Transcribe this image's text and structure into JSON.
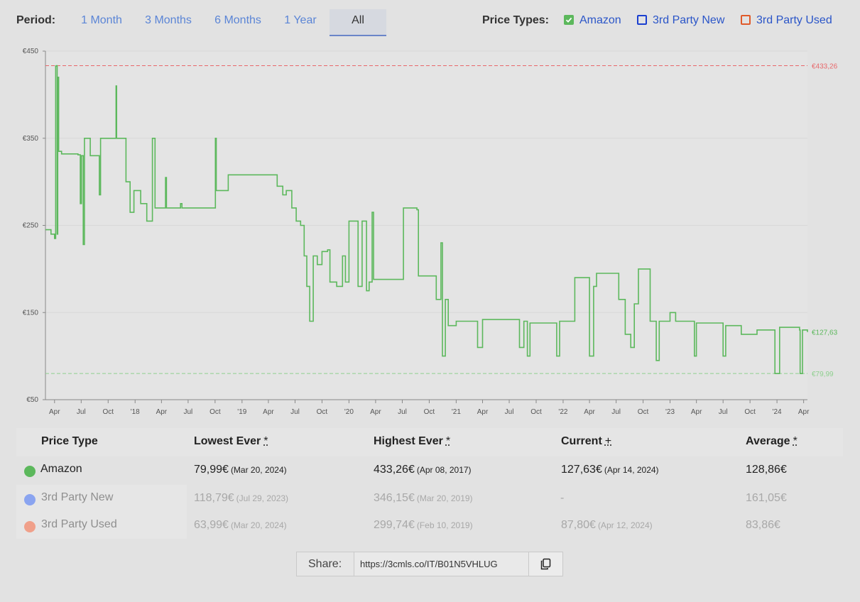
{
  "period": {
    "label": "Period:",
    "options": [
      "1 Month",
      "3 Months",
      "6 Months",
      "1 Year",
      "All"
    ],
    "selected": "All"
  },
  "price_types": {
    "label": "Price Types:",
    "items": [
      {
        "label": "Amazon",
        "checked": true,
        "color": "#5cb85c"
      },
      {
        "label": "3rd Party New",
        "checked": false,
        "color": "#1a3fd0"
      },
      {
        "label": "3rd Party Used",
        "checked": false,
        "color": "#e05a2a"
      }
    ]
  },
  "chart_data": {
    "type": "line",
    "title": "",
    "xlabel": "",
    "ylabel": "",
    "ylim": [
      50,
      450
    ],
    "y_ticks": [
      "€450",
      "€350",
      "€250",
      "€150",
      "€50"
    ],
    "x_ticks": [
      "Apr",
      "Jul",
      "Oct",
      "'18",
      "Apr",
      "Jul",
      "Oct",
      "'19",
      "Apr",
      "Jul",
      "Oct",
      "'20",
      "Apr",
      "Jul",
      "Oct",
      "'21",
      "Apr",
      "Jul",
      "Oct",
      "'22",
      "Apr",
      "Jul",
      "Oct",
      "'23",
      "Apr",
      "Jul",
      "Oct",
      "'24",
      "Apr"
    ],
    "x_range": [
      "2017-03-01",
      "2024-04-14"
    ],
    "reference_lines": [
      {
        "label": "€433,26",
        "value": 433.26,
        "color": "#e8686b"
      },
      {
        "label": "€127,63",
        "value": 127.63,
        "color": "#5cb85c"
      },
      {
        "label": "€79,99",
        "value": 79.99,
        "color": "#8fd08f"
      }
    ],
    "series": [
      {
        "name": "Amazon",
        "color": "#5cb85c",
        "points": [
          [
            "2017-03-01",
            245
          ],
          [
            "2017-03-20",
            240
          ],
          [
            "2017-04-01",
            235
          ],
          [
            "2017-04-05",
            433
          ],
          [
            "2017-04-08",
            433.26
          ],
          [
            "2017-04-10",
            240
          ],
          [
            "2017-04-12",
            420
          ],
          [
            "2017-04-15",
            335
          ],
          [
            "2017-04-25",
            332
          ],
          [
            "2017-05-20",
            332
          ],
          [
            "2017-06-20",
            331
          ],
          [
            "2017-06-28",
            275
          ],
          [
            "2017-07-02",
            330
          ],
          [
            "2017-07-08",
            228
          ],
          [
            "2017-07-12",
            350
          ],
          [
            "2017-07-25",
            350
          ],
          [
            "2017-08-01",
            330
          ],
          [
            "2017-08-20",
            330
          ],
          [
            "2017-09-01",
            285
          ],
          [
            "2017-09-05",
            350
          ],
          [
            "2017-10-25",
            350
          ],
          [
            "2017-10-28",
            410
          ],
          [
            "2017-10-30",
            350
          ],
          [
            "2017-11-25",
            350
          ],
          [
            "2017-12-01",
            300
          ],
          [
            "2017-12-15",
            265
          ],
          [
            "2017-12-28",
            290
          ],
          [
            "2018-01-20",
            275
          ],
          [
            "2018-02-10",
            255
          ],
          [
            "2018-03-01",
            350
          ],
          [
            "2018-03-10",
            270
          ],
          [
            "2018-04-15",
            305
          ],
          [
            "2018-04-18",
            270
          ],
          [
            "2018-05-30",
            270
          ],
          [
            "2018-06-05",
            275
          ],
          [
            "2018-06-10",
            270
          ],
          [
            "2018-09-30",
            270
          ],
          [
            "2018-10-02",
            350
          ],
          [
            "2018-10-05",
            290
          ],
          [
            "2018-11-10",
            290
          ],
          [
            "2018-11-15",
            308
          ],
          [
            "2019-04-20",
            308
          ],
          [
            "2019-05-01",
            295
          ],
          [
            "2019-05-20",
            285
          ],
          [
            "2019-06-01",
            290
          ],
          [
            "2019-06-20",
            270
          ],
          [
            "2019-07-05",
            255
          ],
          [
            "2019-07-20",
            250
          ],
          [
            "2019-08-01",
            215
          ],
          [
            "2019-08-10",
            180
          ],
          [
            "2019-08-20",
            140
          ],
          [
            "2019-09-01",
            215
          ],
          [
            "2019-09-15",
            205
          ],
          [
            "2019-10-01",
            220
          ],
          [
            "2019-10-20",
            222
          ],
          [
            "2019-10-28",
            185
          ],
          [
            "2019-11-20",
            180
          ],
          [
            "2019-12-10",
            215
          ],
          [
            "2019-12-20",
            185
          ],
          [
            "2020-01-01",
            255
          ],
          [
            "2020-01-20",
            255
          ],
          [
            "2020-02-01",
            180
          ],
          [
            "2020-02-15",
            255
          ],
          [
            "2020-03-01",
            175
          ],
          [
            "2020-03-10",
            185
          ],
          [
            "2020-03-20",
            265
          ],
          [
            "2020-03-25",
            188
          ],
          [
            "2020-07-01",
            188
          ],
          [
            "2020-07-05",
            270
          ],
          [
            "2020-08-20",
            268
          ],
          [
            "2020-08-25",
            192
          ],
          [
            "2020-10-20",
            192
          ],
          [
            "2020-10-25",
            165
          ],
          [
            "2020-11-10",
            230
          ],
          [
            "2020-11-15",
            100
          ],
          [
            "2020-11-25",
            165
          ],
          [
            "2020-12-05",
            135
          ],
          [
            "2021-01-01",
            140
          ],
          [
            "2021-03-10",
            140
          ],
          [
            "2021-03-15",
            110
          ],
          [
            "2021-04-01",
            142
          ],
          [
            "2021-08-01",
            142
          ],
          [
            "2021-08-05",
            110
          ],
          [
            "2021-08-20",
            140
          ],
          [
            "2021-09-01",
            100
          ],
          [
            "2021-09-10",
            138
          ],
          [
            "2021-12-01",
            138
          ],
          [
            "2021-12-10",
            100
          ],
          [
            "2021-12-20",
            140
          ],
          [
            "2022-02-05",
            140
          ],
          [
            "2022-02-10",
            190
          ],
          [
            "2022-03-20",
            190
          ],
          [
            "2022-04-01",
            100
          ],
          [
            "2022-04-15",
            180
          ],
          [
            "2022-04-25",
            195
          ],
          [
            "2022-07-01",
            195
          ],
          [
            "2022-07-10",
            165
          ],
          [
            "2022-08-01",
            125
          ],
          [
            "2022-08-20",
            110
          ],
          [
            "2022-09-01",
            160
          ],
          [
            "2022-09-15",
            200
          ],
          [
            "2022-10-20",
            200
          ],
          [
            "2022-10-25",
            140
          ],
          [
            "2022-11-15",
            95
          ],
          [
            "2022-11-25",
            140
          ],
          [
            "2023-01-01",
            150
          ],
          [
            "2023-01-20",
            140
          ],
          [
            "2023-03-20",
            140
          ],
          [
            "2023-03-25",
            100
          ],
          [
            "2023-04-01",
            138
          ],
          [
            "2023-06-25",
            138
          ],
          [
            "2023-07-01",
            100
          ],
          [
            "2023-07-10",
            135
          ],
          [
            "2023-08-25",
            135
          ],
          [
            "2023-09-01",
            125
          ],
          [
            "2023-10-20",
            125
          ],
          [
            "2023-10-25",
            130
          ],
          [
            "2023-12-20",
            130
          ],
          [
            "2023-12-25",
            80
          ],
          [
            "2024-01-05",
            80
          ],
          [
            "2024-01-10",
            133
          ],
          [
            "2024-03-18",
            130
          ],
          [
            "2024-03-20",
            79.99
          ],
          [
            "2024-03-25",
            80
          ],
          [
            "2024-03-28",
            130
          ],
          [
            "2024-04-14",
            127.63
          ]
        ]
      }
    ]
  },
  "table": {
    "headers": {
      "type": "Price Type",
      "lowest": "Lowest Ever",
      "highest": "Highest Ever",
      "current": "Current",
      "average": "Average",
      "mark_star": "*",
      "mark_plus": "+"
    },
    "rows": [
      {
        "name": "Amazon",
        "dot_color": "#5cb85c",
        "lowest": "79,99€",
        "lowest_date": "(Mar 20, 2024)",
        "highest": "433,26€",
        "highest_date": "(Apr 08, 2017)",
        "current": "127,63€",
        "current_date": "(Apr 14, 2024)",
        "average": "128,86€"
      },
      {
        "name": "3rd Party New",
        "dot_color": "#8aa4f0",
        "lowest": "118,79€",
        "lowest_date": "(Jul 29, 2023)",
        "highest": "346,15€",
        "highest_date": "(Mar 20, 2019)",
        "current": "-",
        "current_date": "",
        "average": "161,05€"
      },
      {
        "name": "3rd Party Used",
        "dot_color": "#f0a08a",
        "lowest": "63,99€",
        "lowest_date": "(Mar 20, 2024)",
        "highest": "299,74€",
        "highest_date": "(Feb 10, 2019)",
        "current": "87,80€",
        "current_date": "(Apr 12, 2024)",
        "average": "83,86€"
      }
    ]
  },
  "share": {
    "label": "Share:",
    "url": "https://3cmls.co/IT/B01N5VHLUG"
  }
}
